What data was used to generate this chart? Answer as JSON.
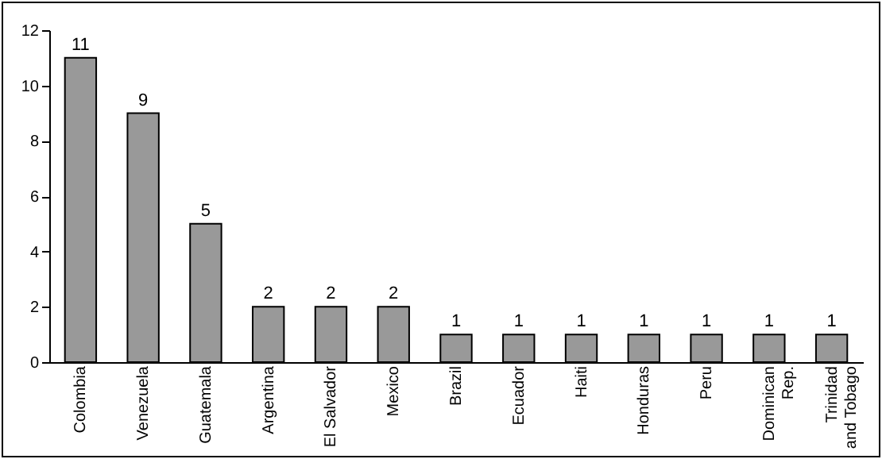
{
  "chart_data": {
    "type": "bar",
    "categories": [
      "Colombia",
      "Venezuela",
      "Guatemala",
      "Argentina",
      "El Salvador",
      "Mexico",
      "Brazil",
      "Ecuador",
      "Haiti",
      "Honduras",
      "Peru",
      "Dominican Rep.",
      "Trinidad and Tobago"
    ],
    "values": [
      11,
      9,
      5,
      2,
      2,
      2,
      1,
      1,
      1,
      1,
      1,
      1,
      1
    ],
    "color": "#999999",
    "ylim": [
      0,
      12
    ],
    "yticks": [
      0,
      2,
      4,
      6,
      8,
      10,
      12
    ],
    "grid": false,
    "data_labels": true
  }
}
